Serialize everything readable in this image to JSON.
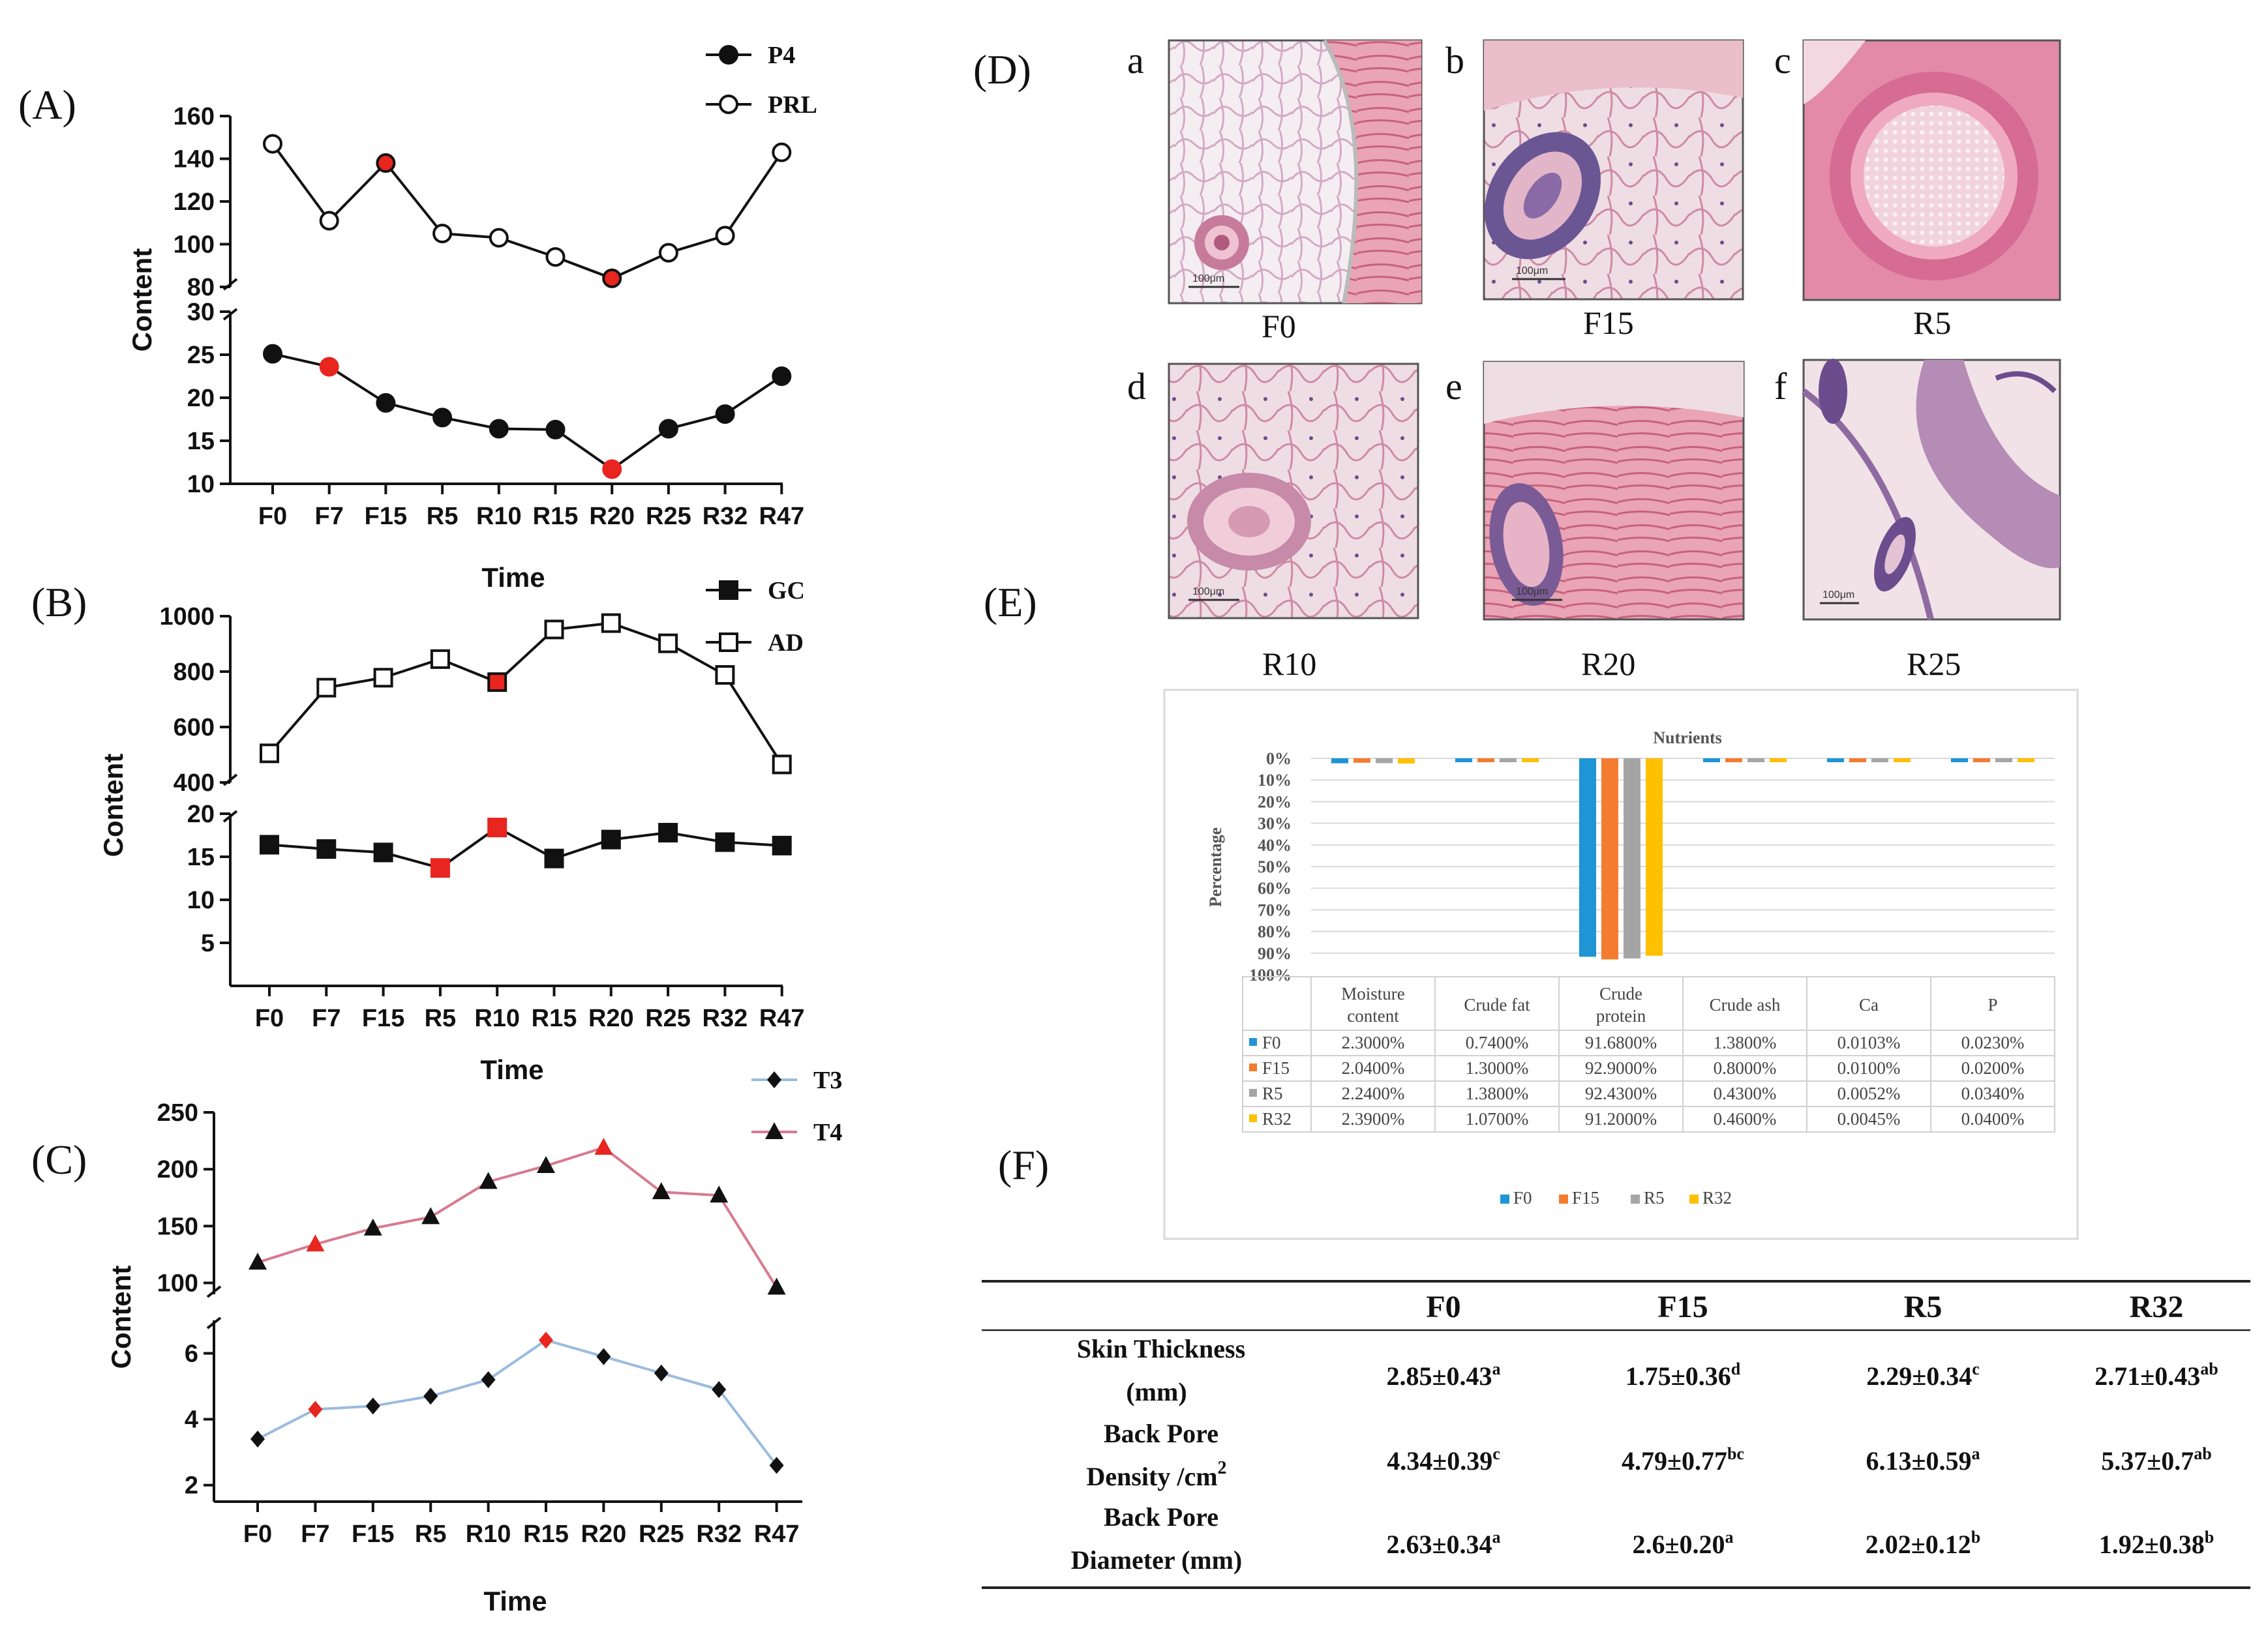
{
  "colors": {
    "highlight": "#e8251f",
    "t3": "#9bbbe0",
    "t4": "#d97a8e",
    "f0": "#1f95d6",
    "f15": "#f47c30",
    "r5": "#a5a5a5",
    "r32": "#ffc000"
  },
  "panels": {
    "A": "(A)",
    "B": "(B)",
    "C": "(C)",
    "D": "(D)",
    "E": "(E)",
    "F": "(F)"
  },
  "chart_data": [
    {
      "id": "A",
      "type": "line",
      "xlabel": "Time",
      "ylabel": "Content",
      "categories": [
        "F0",
        "F7",
        "F15",
        "R5",
        "R10",
        "R15",
        "R20",
        "R25",
        "R32",
        "R47"
      ],
      "top_ticks": [
        "160",
        "140",
        "120",
        "100",
        "80"
      ],
      "bottom_ticks": [
        "30",
        "25",
        "20",
        "15",
        "10"
      ],
      "series": [
        {
          "name": "PRL",
          "marker": "open-circle",
          "segment": "top",
          "ylim": [
            80,
            160
          ],
          "values": [
            147,
            111,
            138,
            105,
            103,
            94,
            84,
            96,
            104,
            143
          ],
          "highlight": [
            2,
            6
          ]
        },
        {
          "name": "P4",
          "marker": "filled-circle",
          "segment": "bottom",
          "ylim": [
            10,
            30
          ],
          "values": [
            25.1,
            23.6,
            19.4,
            17.7,
            16.4,
            16.3,
            11.7,
            16.4,
            18.1,
            22.5
          ],
          "highlight": [
            1,
            6
          ]
        }
      ]
    },
    {
      "id": "B",
      "type": "line",
      "xlabel": "Time",
      "ylabel": "Content",
      "categories": [
        "F0",
        "F7",
        "F15",
        "R5",
        "R10",
        "R15",
        "R20",
        "R25",
        "R32",
        "R47"
      ],
      "top_ticks": [
        "1000",
        "800",
        "600",
        "400"
      ],
      "bottom_ticks": [
        "20",
        "15",
        "10",
        "5"
      ],
      "series": [
        {
          "name": "AD",
          "marker": "open-square",
          "segment": "top",
          "ylim": [
            400,
            1000
          ],
          "values": [
            505,
            742,
            778,
            845,
            762,
            952,
            975,
            902,
            788,
            465
          ],
          "highlight": [
            4
          ]
        },
        {
          "name": "GC",
          "marker": "filled-square",
          "segment": "bottom",
          "ylim": [
            0,
            20
          ],
          "values": [
            16.4,
            15.9,
            15.5,
            13.7,
            18.4,
            14.8,
            17.0,
            17.8,
            16.7,
            16.3
          ],
          "highlight": [
            3,
            4
          ]
        }
      ]
    },
    {
      "id": "C",
      "type": "line",
      "xlabel": "Time",
      "ylabel": "Content",
      "categories": [
        "F0",
        "F7",
        "F15",
        "R5",
        "R10",
        "R15",
        "R20",
        "R25",
        "R32",
        "R47"
      ],
      "top_ticks": [
        "250",
        "200",
        "150",
        "100"
      ],
      "bottom_ticks": [
        "6",
        "4",
        "2"
      ],
      "series": [
        {
          "name": "T4",
          "marker": "triangle",
          "segment": "top",
          "ylim": [
            90,
            250
          ],
          "values": [
            118,
            134,
            148,
            158,
            189,
            203,
            219,
            180,
            177,
            96
          ],
          "highlight": [
            1,
            6
          ]
        },
        {
          "name": "T3",
          "marker": "diamond",
          "segment": "bottom",
          "ylim": [
            1.5,
            7.0
          ],
          "values": [
            3.4,
            4.3,
            4.4,
            4.7,
            5.2,
            6.4,
            5.9,
            5.4,
            4.9,
            2.6
          ],
          "highlight": [
            1,
            5
          ]
        }
      ]
    },
    {
      "id": "E",
      "type": "bar",
      "title": "Nutrients",
      "ylabel": "Percentage",
      "categories": [
        "Moisture content",
        "Crude fat",
        "Crude protein",
        "Crude ash",
        "Ca",
        "P"
      ],
      "ylim": [
        0,
        100
      ],
      "yticks": [
        "0%",
        "10%",
        "20%",
        "30%",
        "40%",
        "50%",
        "60%",
        "70%",
        "80%",
        "90%",
        "100%"
      ],
      "series": [
        {
          "name": "F0",
          "values": [
            2.3,
            0.74,
            91.68,
            1.38,
            0.0103,
            0.023
          ],
          "labels": [
            "2.3000%",
            "0.7400%",
            "91.6800%",
            "1.3800%",
            "0.0103%",
            "0.0230%"
          ]
        },
        {
          "name": "F15",
          "values": [
            2.04,
            1.3,
            92.9,
            0.8,
            0.01,
            0.02
          ],
          "labels": [
            "2.0400%",
            "1.3000%",
            "92.9000%",
            "0.8000%",
            "0.0100%",
            "0.0200%"
          ]
        },
        {
          "name": "R5",
          "values": [
            2.24,
            1.38,
            92.43,
            0.43,
            0.0052,
            0.034
          ],
          "labels": [
            "2.2400%",
            "1.3800%",
            "92.4300%",
            "0.4300%",
            "0.0052%",
            "0.0340%"
          ]
        },
        {
          "name": "R32",
          "values": [
            2.39,
            1.07,
            91.2,
            0.46,
            0.0045,
            0.04
          ],
          "labels": [
            "2.3900%",
            "1.0700%",
            "91.2000%",
            "0.4600%",
            "0.0045%",
            "0.0400%"
          ]
        }
      ]
    }
  ],
  "histology": [
    {
      "letter": "a",
      "label": "F0",
      "scale": "100μm"
    },
    {
      "letter": "b",
      "label": "F15",
      "scale": "100μm"
    },
    {
      "letter": "c",
      "label": "R5",
      "scale": ""
    },
    {
      "letter": "d",
      "label": "R10",
      "scale": "100μm"
    },
    {
      "letter": "e",
      "label": "R20",
      "scale": "100μm"
    },
    {
      "letter": "f",
      "label": "R25",
      "scale": "100μm"
    }
  ],
  "table_f": {
    "columns": [
      "F0",
      "F15",
      "R5",
      "R32"
    ],
    "rows": [
      {
        "label1": "Skin Thickness",
        "label2": "(mm)",
        "label2_sup": "",
        "cells": [
          {
            "v": "2.85±0.43",
            "s": "a"
          },
          {
            "v": "1.75±0.36",
            "s": "d"
          },
          {
            "v": "2.29±0.34",
            "s": "c"
          },
          {
            "v": "2.71±0.43",
            "s": "ab"
          }
        ]
      },
      {
        "label1": "Back Pore",
        "label2": "Density /cm",
        "label2_sup": "2",
        "cells": [
          {
            "v": "4.34±0.39",
            "s": "c"
          },
          {
            "v": "4.79±0.77",
            "s": "bc"
          },
          {
            "v": "6.13±0.59",
            "s": "a"
          },
          {
            "v": "5.37±0.7",
            "s": "ab"
          }
        ]
      },
      {
        "label1": "Back Pore",
        "label2": "Diameter (mm)",
        "label2_sup": "",
        "cells": [
          {
            "v": "2.63±0.34",
            "s": "a"
          },
          {
            "v": "2.6±0.20",
            "s": "a"
          },
          {
            "v": "2.02±0.12",
            "s": "b"
          },
          {
            "v": "1.92±0.38",
            "s": "b"
          }
        ]
      }
    ]
  }
}
